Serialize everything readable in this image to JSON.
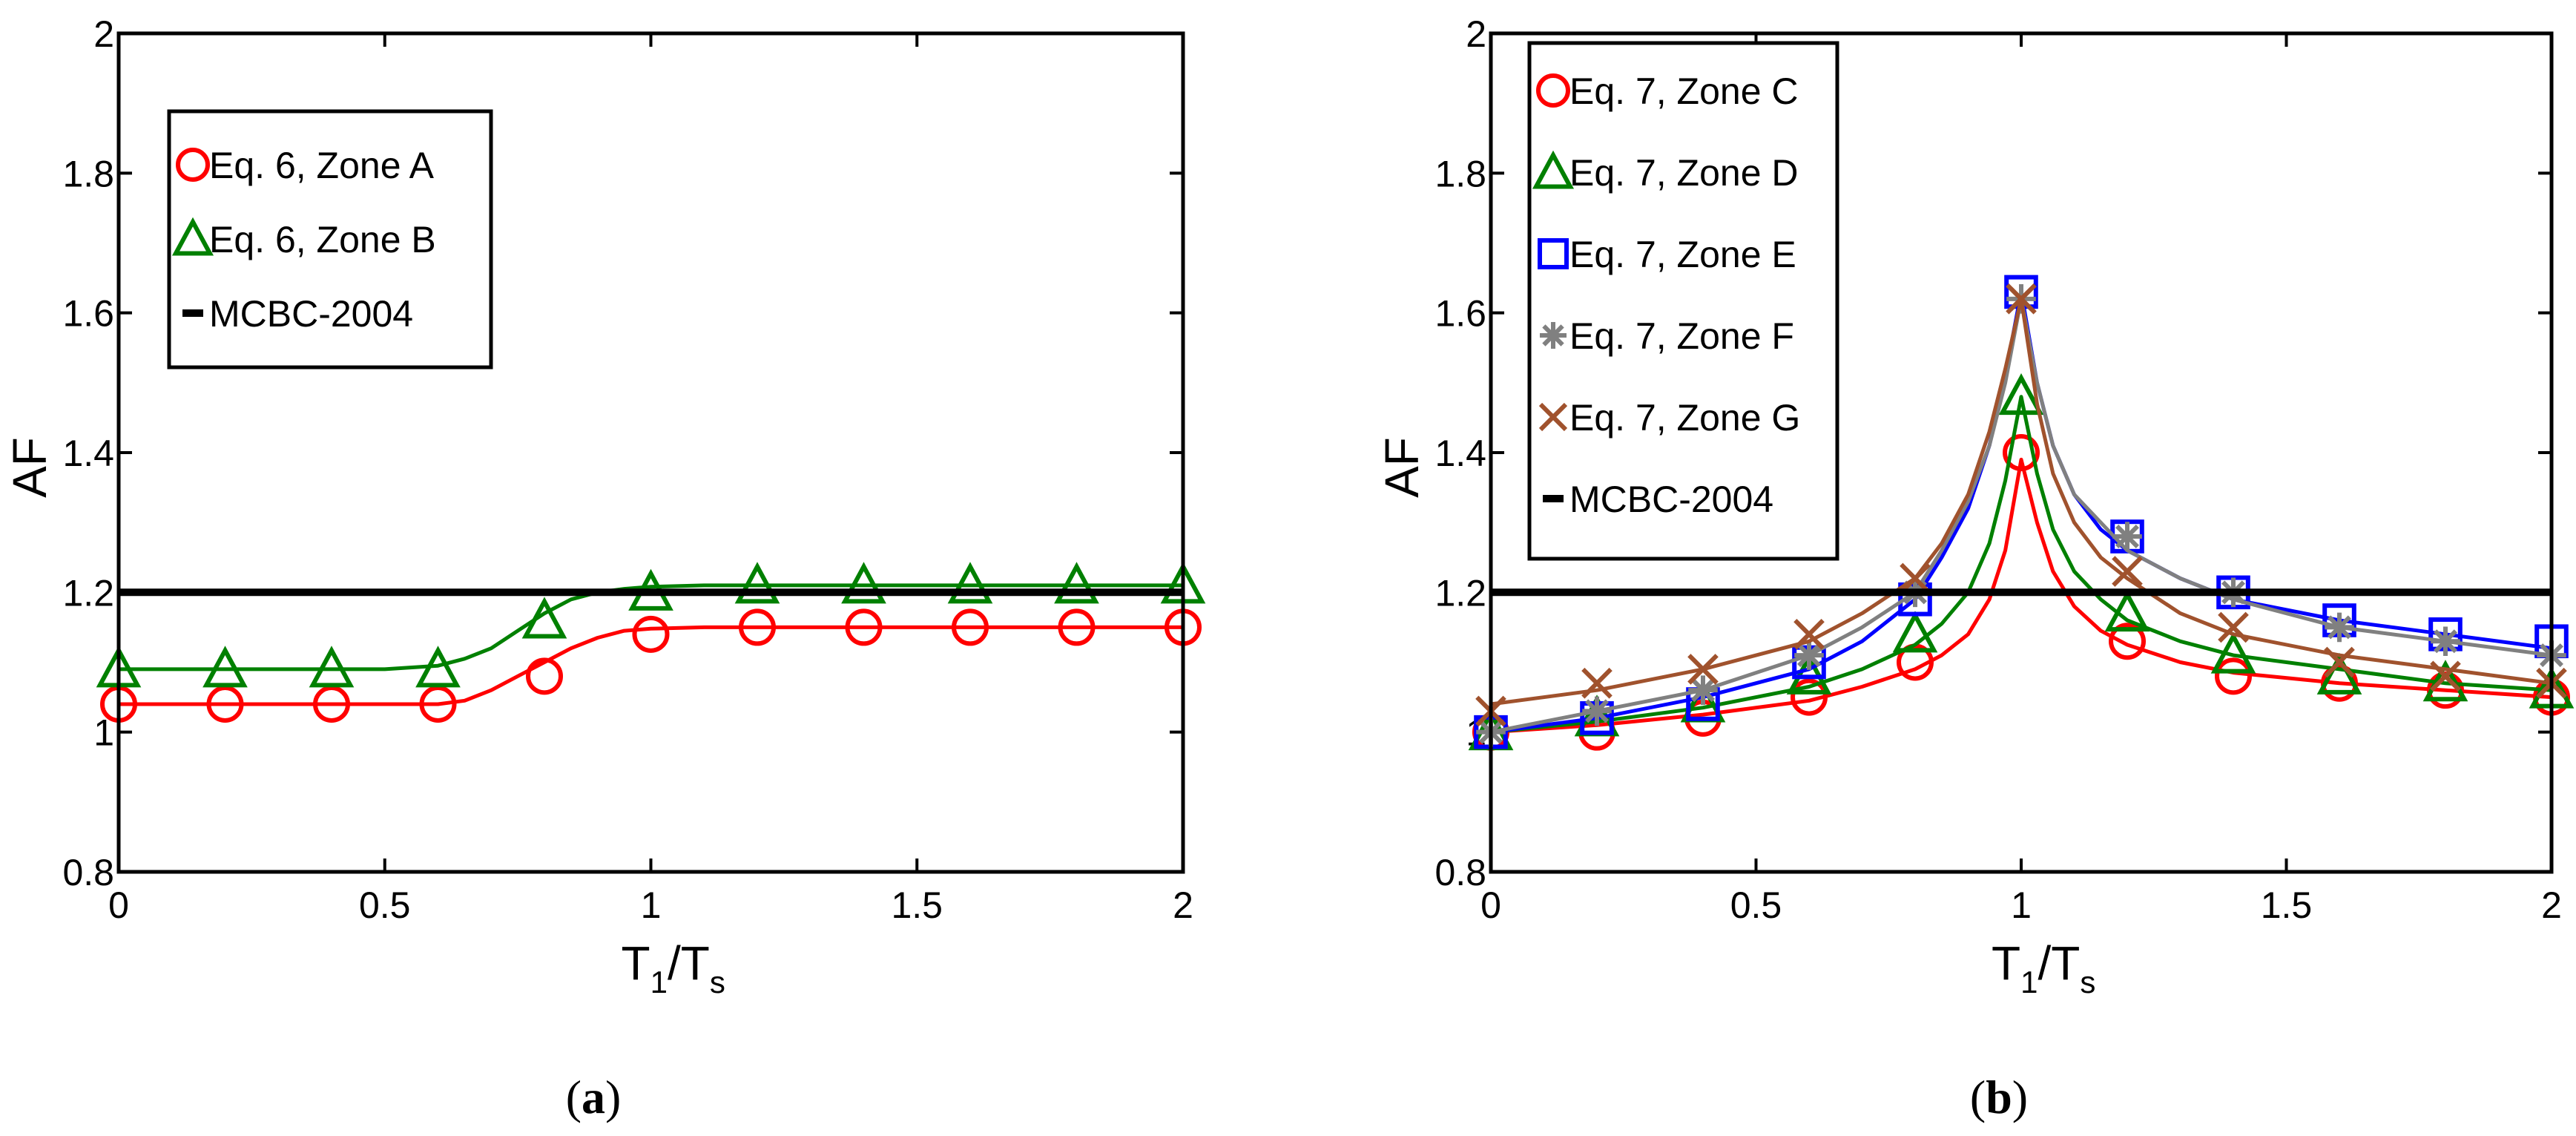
{
  "chart_data": [
    {
      "type": "line",
      "panel": "a",
      "caption_open": "(",
      "caption_letter": "a",
      "caption_close": ")",
      "xlabel_main": "T",
      "xlabel_sub1": "1",
      "xlabel_slash": "/T",
      "xlabel_sub2": "s",
      "ylabel": "AF",
      "xlim": [
        0,
        2
      ],
      "ylim": [
        0.8,
        2
      ],
      "xticks": [
        0,
        0.5,
        1,
        1.5,
        2
      ],
      "xtick_labels": [
        "0",
        "0.5",
        "1",
        "1.5",
        "2"
      ],
      "yticks": [
        0.8,
        1,
        1.2,
        1.4,
        1.6,
        1.8,
        2
      ],
      "ytick_labels": [
        "0.8",
        "1",
        "1.2",
        "1.4",
        "1.6",
        "1.8",
        "2"
      ],
      "marker_x": [
        0,
        0.2,
        0.4,
        0.6,
        0.8,
        1.0,
        1.2,
        1.4,
        1.6,
        1.8,
        2.0
      ],
      "series": [
        {
          "name": "Eq. 6, Zone A",
          "color": "#ff0000",
          "marker": "circle",
          "values": [
            1.04,
            1.04,
            1.04,
            1.04,
            1.08,
            1.14,
            1.15,
            1.15,
            1.15,
            1.15,
            1.15
          ],
          "curve_x": [
            0,
            0.2,
            0.4,
            0.5,
            0.6,
            0.65,
            0.7,
            0.75,
            0.8,
            0.85,
            0.9,
            0.95,
            1.0,
            1.1,
            1.2,
            1.4,
            1.6,
            1.8,
            2.0
          ],
          "curve_y": [
            1.04,
            1.04,
            1.04,
            1.04,
            1.04,
            1.045,
            1.06,
            1.08,
            1.1,
            1.12,
            1.135,
            1.145,
            1.148,
            1.15,
            1.15,
            1.15,
            1.15,
            1.15,
            1.15
          ]
        },
        {
          "name": "Eq. 6, Zone B",
          "color": "#008000",
          "marker": "triangle",
          "values": [
            1.09,
            1.09,
            1.09,
            1.09,
            1.16,
            1.2,
            1.21,
            1.21,
            1.21,
            1.21,
            1.21
          ],
          "curve_x": [
            0,
            0.2,
            0.4,
            0.5,
            0.6,
            0.65,
            0.7,
            0.75,
            0.8,
            0.85,
            0.9,
            0.95,
            1.0,
            1.1,
            1.2,
            1.4,
            1.6,
            1.8,
            2.0
          ],
          "curve_y": [
            1.09,
            1.09,
            1.09,
            1.09,
            1.095,
            1.105,
            1.12,
            1.145,
            1.17,
            1.19,
            1.2,
            1.205,
            1.208,
            1.21,
            1.21,
            1.21,
            1.21,
            1.21,
            1.21
          ]
        },
        {
          "name": "MCBC-2004",
          "color": "#000000",
          "marker": "none",
          "curve_x": [
            0,
            2
          ],
          "curve_y": [
            1.2,
            1.2
          ]
        }
      ]
    },
    {
      "type": "line",
      "panel": "b",
      "caption_open": "(",
      "caption_letter": "b",
      "caption_close": ")",
      "xlabel_main": "T",
      "xlabel_sub1": "1",
      "xlabel_slash": "/T",
      "xlabel_sub2": "s",
      "ylabel": "AF",
      "xlim": [
        0,
        2
      ],
      "ylim": [
        0.8,
        2
      ],
      "xticks": [
        0,
        0.5,
        1,
        1.5,
        2
      ],
      "xtick_labels": [
        "0",
        "0.5",
        "1",
        "1.5",
        "2"
      ],
      "yticks": [
        0.8,
        1,
        1.2,
        1.4,
        1.6,
        1.8,
        2
      ],
      "ytick_labels": [
        "0.8",
        "1",
        "1.2",
        "1.4",
        "1.6",
        "1.8",
        "2"
      ],
      "marker_x": [
        0,
        0.2,
        0.4,
        0.6,
        0.8,
        1.0,
        1.2,
        1.4,
        1.6,
        1.8,
        2.0
      ],
      "series": [
        {
          "name": "Eq. 7, Zone C",
          "color": "#ff0000",
          "marker": "circle",
          "values": [
            1.0,
            1.0,
            1.02,
            1.05,
            1.1,
            1.4,
            1.13,
            1.08,
            1.07,
            1.06,
            1.05
          ],
          "curve_x": [
            0,
            0.2,
            0.4,
            0.6,
            0.7,
            0.8,
            0.85,
            0.9,
            0.94,
            0.97,
            1.0,
            1.03,
            1.06,
            1.1,
            1.15,
            1.2,
            1.3,
            1.4,
            1.6,
            1.8,
            2.0
          ],
          "curve_y": [
            1.0,
            1.01,
            1.025,
            1.045,
            1.065,
            1.09,
            1.11,
            1.14,
            1.19,
            1.26,
            1.39,
            1.3,
            1.23,
            1.18,
            1.145,
            1.125,
            1.1,
            1.085,
            1.07,
            1.06,
            1.05
          ]
        },
        {
          "name": "Eq. 7, Zone D",
          "color": "#008000",
          "marker": "triangle",
          "values": [
            1.0,
            1.02,
            1.04,
            1.08,
            1.14,
            1.48,
            1.17,
            1.11,
            1.08,
            1.07,
            1.06
          ],
          "curve_x": [
            0,
            0.2,
            0.4,
            0.6,
            0.7,
            0.8,
            0.85,
            0.9,
            0.94,
            0.97,
            1.0,
            1.03,
            1.06,
            1.1,
            1.15,
            1.2,
            1.3,
            1.4,
            1.6,
            1.8,
            2.0
          ],
          "curve_y": [
            1.0,
            1.015,
            1.035,
            1.065,
            1.09,
            1.125,
            1.155,
            1.2,
            1.27,
            1.36,
            1.48,
            1.37,
            1.29,
            1.23,
            1.19,
            1.16,
            1.13,
            1.11,
            1.09,
            1.07,
            1.06
          ]
        },
        {
          "name": "Eq. 7, Zone E",
          "color": "#0000ff",
          "marker": "square",
          "values": [
            1.0,
            1.02,
            1.04,
            1.1,
            1.19,
            1.63,
            1.28,
            1.2,
            1.16,
            1.14,
            1.13
          ],
          "curve_x": [
            0,
            0.2,
            0.4,
            0.6,
            0.7,
            0.8,
            0.85,
            0.9,
            0.94,
            0.97,
            1.0,
            1.03,
            1.06,
            1.1,
            1.15,
            1.2,
            1.3,
            1.4,
            1.6,
            1.8,
            2.0
          ],
          "curve_y": [
            1.0,
            1.02,
            1.05,
            1.09,
            1.13,
            1.19,
            1.25,
            1.32,
            1.41,
            1.51,
            1.63,
            1.5,
            1.41,
            1.34,
            1.29,
            1.26,
            1.22,
            1.19,
            1.16,
            1.14,
            1.12
          ]
        },
        {
          "name": "Eq. 7, Zone F",
          "color": "#808080",
          "marker": "asterisk",
          "values": [
            1.0,
            1.03,
            1.06,
            1.11,
            1.2,
            1.62,
            1.28,
            1.2,
            1.15,
            1.13,
            1.11
          ],
          "curve_x": [
            0,
            0.2,
            0.4,
            0.6,
            0.7,
            0.8,
            0.85,
            0.9,
            0.94,
            0.97,
            1.0,
            1.03,
            1.06,
            1.1,
            1.15,
            1.2,
            1.3,
            1.4,
            1.6,
            1.8,
            2.0
          ],
          "curve_y": [
            1.0,
            1.03,
            1.06,
            1.11,
            1.15,
            1.2,
            1.26,
            1.33,
            1.41,
            1.5,
            1.62,
            1.5,
            1.41,
            1.34,
            1.3,
            1.26,
            1.22,
            1.19,
            1.15,
            1.13,
            1.11
          ]
        },
        {
          "name": "Eq. 7, Zone G",
          "color": "#a0522d",
          "marker": "x",
          "values": [
            1.03,
            1.07,
            1.09,
            1.14,
            1.22,
            1.62,
            1.23,
            1.15,
            1.1,
            1.08,
            1.07
          ],
          "curve_x": [
            0,
            0.2,
            0.4,
            0.6,
            0.7,
            0.8,
            0.85,
            0.9,
            0.94,
            0.97,
            1.0,
            1.03,
            1.06,
            1.1,
            1.15,
            1.2,
            1.3,
            1.4,
            1.6,
            1.8,
            2.0
          ],
          "curve_y": [
            1.04,
            1.06,
            1.09,
            1.13,
            1.17,
            1.22,
            1.27,
            1.34,
            1.43,
            1.52,
            1.62,
            1.47,
            1.37,
            1.3,
            1.25,
            1.22,
            1.17,
            1.14,
            1.11,
            1.09,
            1.07
          ]
        },
        {
          "name": "MCBC-2004",
          "color": "#000000",
          "marker": "none",
          "curve_x": [
            0,
            2
          ],
          "curve_y": [
            1.2,
            1.2
          ]
        }
      ]
    }
  ]
}
